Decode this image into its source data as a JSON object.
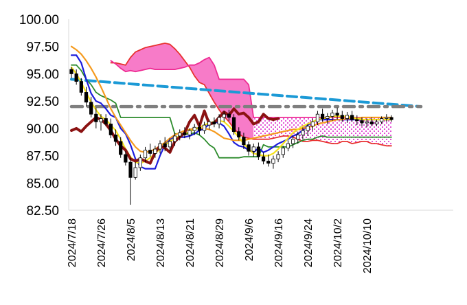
{
  "chart_data": {
    "type": "candlestick",
    "y_ticks": [
      "100.00",
      "97.50",
      "95.00",
      "92.50",
      "90.00",
      "87.50",
      "85.00",
      "82.50"
    ],
    "ylim": [
      82.5,
      100
    ],
    "x_ticks": [
      "2024/7/18",
      "2024/7/26",
      "2024/8/5",
      "2024/8/13",
      "2024/8/21",
      "2024/8/29",
      "2024/9/6",
      "2024/9/16",
      "2024/9/24",
      "2024/10/2",
      "2024/10/10"
    ],
    "x_tick_index": [
      0,
      6,
      12,
      18,
      24,
      30,
      36,
      42,
      48,
      54,
      60
    ],
    "n_points": 78,
    "grid": false,
    "legend": "none",
    "candles": [
      [
        95.4,
        95.6,
        94.6,
        95.0
      ],
      [
        95.0,
        95.4,
        94.0,
        94.3
      ],
      [
        94.3,
        94.6,
        93.0,
        93.3
      ],
      [
        93.3,
        93.8,
        92.0,
        92.4
      ],
      [
        92.4,
        92.9,
        91.0,
        91.3
      ],
      [
        91.3,
        91.9,
        90.0,
        90.6
      ],
      [
        90.6,
        91.3,
        89.8,
        90.9
      ],
      [
        90.9,
        91.3,
        90.2,
        90.4
      ],
      [
        90.4,
        90.9,
        89.1,
        89.4
      ],
      [
        89.4,
        89.9,
        88.4,
        88.8
      ],
      [
        88.8,
        89.2,
        87.3,
        87.6
      ],
      [
        87.6,
        87.9,
        86.6,
        86.9
      ],
      [
        86.9,
        87.3,
        83.0,
        85.5
      ],
      [
        85.5,
        86.9,
        85.3,
        86.4
      ],
      [
        86.4,
        87.6,
        86.1,
        87.3
      ],
      [
        87.3,
        88.3,
        86.9,
        88.0
      ],
      [
        88.0,
        88.6,
        87.4,
        87.7
      ],
      [
        87.7,
        88.4,
        87.3,
        88.1
      ],
      [
        88.1,
        88.9,
        87.7,
        88.6
      ],
      [
        88.6,
        89.2,
        87.9,
        88.3
      ],
      [
        88.3,
        89.1,
        87.9,
        88.8
      ],
      [
        88.8,
        89.6,
        88.4,
        89.3
      ],
      [
        89.3,
        89.9,
        88.9,
        89.6
      ],
      [
        89.6,
        90.1,
        89.1,
        89.4
      ],
      [
        89.4,
        90.0,
        89.0,
        89.8
      ],
      [
        89.8,
        90.4,
        89.4,
        90.1
      ],
      [
        90.1,
        90.5,
        89.4,
        89.8
      ],
      [
        89.8,
        90.6,
        89.5,
        90.3
      ],
      [
        90.3,
        90.8,
        89.9,
        90.6
      ],
      [
        90.6,
        91.0,
        90.1,
        90.4
      ],
      [
        90.4,
        91.3,
        90.0,
        91.0
      ],
      [
        91.0,
        91.6,
        90.6,
        91.3
      ],
      [
        91.3,
        91.7,
        90.7,
        91.0
      ],
      [
        91.0,
        91.3,
        89.4,
        89.7
      ],
      [
        89.7,
        90.1,
        88.9,
        89.2
      ],
      [
        89.2,
        89.6,
        88.1,
        88.5
      ],
      [
        88.5,
        88.8,
        87.5,
        87.9
      ],
      [
        87.9,
        88.6,
        87.4,
        88.3
      ],
      [
        88.3,
        88.7,
        87.1,
        87.4
      ],
      [
        87.4,
        87.8,
        86.7,
        87.0
      ],
      [
        87.0,
        87.6,
        86.5,
        86.8
      ],
      [
        86.8,
        87.5,
        86.3,
        87.2
      ],
      [
        87.2,
        87.9,
        86.9,
        87.6
      ],
      [
        87.6,
        88.4,
        87.3,
        88.2
      ],
      [
        88.2,
        88.9,
        87.9,
        88.6
      ],
      [
        88.6,
        89.3,
        88.2,
        89.0
      ],
      [
        89.0,
        89.7,
        88.6,
        89.4
      ],
      [
        89.4,
        90.1,
        89.0,
        89.8
      ],
      [
        89.8,
        90.4,
        89.3,
        90.2
      ],
      [
        90.2,
        90.9,
        89.8,
        90.6
      ],
      [
        90.6,
        91.6,
        90.3,
        91.3
      ],
      [
        91.3,
        91.8,
        90.6,
        90.9
      ],
      [
        90.9,
        91.4,
        90.4,
        91.1
      ],
      [
        91.1,
        91.7,
        90.7,
        91.4
      ],
      [
        91.4,
        91.9,
        90.8,
        91.2
      ],
      [
        91.2,
        91.6,
        90.6,
        90.9
      ],
      [
        90.9,
        91.5,
        90.5,
        91.2
      ],
      [
        91.2,
        91.6,
        90.6,
        90.8
      ],
      [
        90.8,
        91.2,
        90.3,
        90.7
      ],
      [
        90.7,
        91.0,
        90.2,
        90.5
      ],
      [
        90.5,
        90.9,
        90.1,
        90.6
      ],
      [
        90.6,
        91.0,
        90.2,
        90.4
      ],
      [
        90.4,
        90.8,
        90.2,
        90.6
      ],
      [
        90.6,
        91.1,
        90.4,
        90.9
      ],
      [
        90.9,
        91.3,
        90.6,
        91.0
      ],
      [
        91.0,
        91.2,
        90.6,
        90.8
      ]
    ],
    "series": [
      {
        "color": "#e8312f",
        "x0": 8,
        "values": [
          96.0,
          96.0,
          95.9,
          95.8,
          96.5,
          97.0,
          97.2,
          97.4,
          97.5,
          97.6,
          97.7,
          97.8,
          97.7,
          97.3,
          96.8,
          96.2,
          95.6,
          94.8,
          94.2,
          94.0,
          93.2,
          92.4,
          91.7,
          91.1,
          90.6,
          90.0,
          89.5,
          89.2,
          89.1,
          89.0,
          89.0,
          89.0,
          89.0,
          89.1,
          89.2,
          89.3,
          89.3,
          89.2,
          89.0,
          88.8,
          88.8,
          88.9,
          88.9,
          88.8,
          88.7,
          88.6,
          88.6,
          88.8,
          88.8,
          88.6,
          88.7,
          88.8,
          88.8,
          88.6,
          88.6,
          88.5,
          88.4,
          88.4
        ]
      },
      {
        "color": "#ee2b93",
        "x0": 8,
        "values": [
          96.2,
          95.9,
          95.5,
          95.2,
          95.3,
          95.2,
          95.3,
          95.4,
          95.5,
          95.4,
          95.4,
          95.4,
          95.4,
          95.4,
          95.5,
          95.6,
          95.8,
          95.8,
          96.0,
          96.3,
          96.5,
          95.8,
          94.5,
          94.5,
          94.5,
          94.5,
          94.5,
          94.5,
          94.0,
          91.0,
          91.0,
          91.0,
          91.0,
          91.0,
          91.0,
          91.0,
          91.0,
          91.0,
          91.0,
          91.0,
          91.0,
          91.0,
          91.0,
          91.0,
          91.0,
          91.0,
          91.0,
          91.0,
          91.0,
          91.0,
          91.0,
          91.0,
          91.0,
          91.0,
          91.0,
          91.0,
          91.0,
          91.0
        ]
      },
      {
        "color": "#1c9ad6",
        "x0": 0,
        "values": [
          94.5,
          94.2
        ]
      },
      {
        "color": "#7f7f7f",
        "x0": 0,
        "values": [
          92.0,
          92.0
        ]
      },
      {
        "color": "#2a8a2a",
        "x0": 0,
        "values": [
          95.8,
          95.8,
          95.3,
          94.5,
          94.0,
          93.3,
          93.0,
          92.8,
          92.6,
          92.3,
          91.0,
          91.0,
          91.0,
          91.0,
          91.0,
          91.0,
          91.0,
          91.0,
          91.0,
          91.0,
          91.0,
          89.5,
          89.5,
          89.5,
          89.5,
          89.6,
          89.4,
          89.0,
          88.5,
          88.2,
          87.3,
          87.3,
          87.3,
          87.3,
          87.3,
          87.4,
          87.4,
          87.4,
          87.4,
          88.5,
          88.3,
          88.3,
          88.3,
          88.3,
          88.3,
          88.5,
          88.7,
          88.9,
          89.0,
          89.0,
          89.2,
          89.3,
          89.2,
          89.2,
          89.2,
          89.2,
          89.2,
          89.2,
          89.2,
          89.2,
          89.2,
          89.2,
          89.2,
          89.2,
          89.2,
          89.2
        ]
      },
      {
        "color": "#1c1cdc",
        "x0": 0,
        "values": [
          96.7,
          96.7,
          96.0,
          94.5,
          93.2,
          92.5,
          92.3,
          91.8,
          91.2,
          91.0,
          90.0,
          89.5,
          88.5,
          87.2,
          86.5,
          86.3,
          86.3,
          86.3,
          87.5,
          88.5,
          89.0,
          89.2,
          89.2,
          89.2,
          89.3,
          89.5,
          89.8,
          90.0,
          90.4,
          90.6,
          90.5,
          90.2,
          89.5,
          88.7,
          88.4,
          88.3,
          88.0,
          87.8,
          88.2,
          87.8,
          88.0,
          88.3,
          88.6,
          88.8,
          89.0,
          89.3,
          89.5,
          89.8,
          90.3,
          90.6,
          90.8,
          90.8,
          90.8,
          90.8,
          90.8,
          90.8,
          90.8,
          90.8,
          90.8,
          90.8,
          90.8,
          90.8,
          90.8,
          90.8,
          90.8,
          90.8
        ]
      },
      {
        "color": "#f59a1d",
        "x0": 0,
        "values": [
          97.5,
          97.2,
          96.8,
          96.2,
          95.5,
          94.7,
          93.8,
          92.8,
          91.8,
          91.0,
          90.3,
          89.6,
          88.9,
          88.3,
          87.9,
          87.8,
          87.9,
          88.1,
          88.4,
          88.7,
          89.1,
          89.4,
          89.6,
          89.8,
          89.9,
          90.0,
          90.0,
          90.0,
          89.9,
          89.7,
          89.4,
          89.1,
          89.0,
          88.9,
          88.9,
          88.9,
          89.0,
          89.1,
          89.2,
          89.3,
          89.4,
          89.5,
          89.6,
          89.7,
          89.8,
          89.9,
          89.9,
          90.0,
          90.1,
          90.2,
          90.4,
          90.5,
          90.6,
          90.7,
          90.8,
          90.8,
          90.9,
          90.9,
          90.9,
          91.0,
          91.0,
          91.0,
          91.0,
          91.0,
          91.0,
          91.0
        ]
      },
      {
        "color": "#f5e21c",
        "x0": 0,
        "values": [
          95.6,
          95.0,
          94.2,
          93.3,
          92.4,
          91.7,
          91.1,
          90.8,
          90.3,
          89.8,
          89.0,
          88.1,
          87.4,
          86.9,
          86.8,
          87.0,
          87.3,
          87.7,
          88.1,
          88.5,
          88.8,
          89.1,
          89.3,
          89.5,
          89.7,
          89.9,
          90.1,
          90.3,
          90.5,
          90.6,
          90.7,
          90.6,
          90.2,
          89.7,
          89.2,
          88.6,
          88.1,
          87.7,
          87.6,
          87.5,
          87.5,
          87.7,
          88.1,
          88.6,
          89.1,
          89.6,
          89.9,
          90.2,
          90.4,
          90.6,
          90.8,
          90.9,
          91.0,
          91.1,
          91.1,
          91.1,
          91.1,
          91.0,
          90.9,
          90.8,
          90.8,
          90.8,
          90.8,
          90.8,
          90.8,
          90.8
        ]
      },
      {
        "color": "#8b1212",
        "x0": 0,
        "values": [
          89.8,
          90.0,
          89.7,
          90.2,
          90.6,
          91.0,
          90.8,
          90.4,
          89.8,
          89.0,
          88.4,
          88.0,
          87.2,
          87.0,
          87.2,
          87.0,
          86.8,
          87.8,
          88.4,
          88.2,
          87.8,
          88.8,
          89.2,
          89.6,
          90.6,
          91.2,
          90.2,
          91.6,
          90.4,
          90.5,
          91.0,
          91.5,
          91.2,
          91.8,
          91.3,
          91.4,
          91.0,
          90.4,
          90.6,
          91.3,
          90.9,
          90.8,
          90.9
        ]
      }
    ]
  }
}
